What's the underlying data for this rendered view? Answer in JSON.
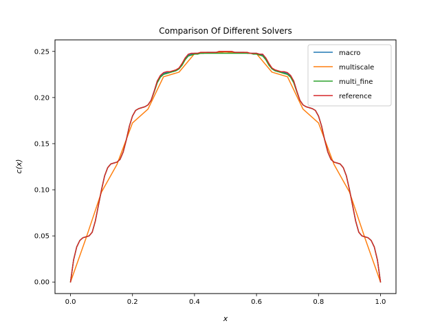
{
  "chart_data": {
    "type": "line",
    "title": "Comparison Of Different Solvers",
    "xlabel": "x",
    "ylabel": "c(x)",
    "xlim": [
      -0.05,
      1.05
    ],
    "ylim": [
      -0.0125,
      0.2625
    ],
    "xticks": [
      0.0,
      0.2,
      0.4,
      0.6,
      0.8,
      1.0
    ],
    "xtick_labels": [
      "0.0",
      "0.2",
      "0.4",
      "0.6",
      "0.8",
      "1.0"
    ],
    "yticks": [
      0.0,
      0.05,
      0.1,
      0.15,
      0.2,
      0.25
    ],
    "ytick_labels": [
      "0.00",
      "0.05",
      "0.10",
      "0.15",
      "0.20",
      "0.25"
    ],
    "grid": false,
    "legend_position": "top-right",
    "series": [
      {
        "name": "macro",
        "color": "#1f77b4",
        "x": [
          0,
          0.01,
          0.02,
          0.03,
          0.04,
          0.05,
          0.06,
          0.07,
          0.08,
          0.09,
          0.1,
          0.11,
          0.12,
          0.13,
          0.14,
          0.15,
          0.16,
          0.17,
          0.18,
          0.19,
          0.2,
          0.21,
          0.22,
          0.23,
          0.24,
          0.25,
          0.26,
          0.27,
          0.28,
          0.29,
          0.3,
          0.31,
          0.32,
          0.33,
          0.34,
          0.35,
          0.36,
          0.37,
          0.38,
          0.39,
          0.4,
          0.41,
          0.42,
          0.43,
          0.44,
          0.45,
          0.46,
          0.47,
          0.48,
          0.49,
          0.5,
          0.51,
          0.52,
          0.53,
          0.54,
          0.55,
          0.56,
          0.57,
          0.58,
          0.59,
          0.6,
          0.61,
          0.62,
          0.63,
          0.64,
          0.65,
          0.66,
          0.67,
          0.68,
          0.69,
          0.7,
          0.71,
          0.72,
          0.73,
          0.74,
          0.75,
          0.76,
          0.77,
          0.78,
          0.79,
          0.8,
          0.81,
          0.82,
          0.83,
          0.84,
          0.85,
          0.86,
          0.87,
          0.88,
          0.89,
          0.9,
          0.91,
          0.92,
          0.93,
          0.94,
          0.95,
          0.96,
          0.97,
          0.98,
          0.99,
          1.0
        ],
        "y": [
          0,
          0.024,
          0.038,
          0.045,
          0.048,
          0.049,
          0.05,
          0.054,
          0.066,
          0.083,
          0.1,
          0.115,
          0.124,
          0.128,
          0.129,
          0.13,
          0.133,
          0.141,
          0.154,
          0.169,
          0.18,
          0.186,
          0.188,
          0.189,
          0.19,
          0.192,
          0.197,
          0.207,
          0.218,
          0.223,
          0.226,
          0.227,
          0.228,
          0.228,
          0.229,
          0.231,
          0.236,
          0.242,
          0.246,
          0.247,
          0.248,
          0.248,
          0.248,
          0.248,
          0.249,
          0.249,
          0.249,
          0.249,
          0.249,
          0.249,
          0.25,
          0.249,
          0.249,
          0.249,
          0.249,
          0.249,
          0.249,
          0.248,
          0.248,
          0.248,
          0.248,
          0.247,
          0.246,
          0.242,
          0.236,
          0.231,
          0.229,
          0.228,
          0.228,
          0.227,
          0.226,
          0.223,
          0.218,
          0.207,
          0.197,
          0.192,
          0.19,
          0.189,
          0.188,
          0.186,
          0.18,
          0.169,
          0.154,
          0.141,
          0.133,
          0.13,
          0.129,
          0.128,
          0.124,
          0.115,
          0.1,
          0.083,
          0.066,
          0.054,
          0.05,
          0.049,
          0.048,
          0.045,
          0.038,
          0.024,
          0
        ]
      },
      {
        "name": "multiscale",
        "color": "#ff7f0e",
        "x": [
          0,
          0.05,
          0.1,
          0.15,
          0.2,
          0.25,
          0.3,
          0.35,
          0.4,
          0.45,
          0.5,
          0.55,
          0.6,
          0.65,
          0.7,
          0.75,
          0.8,
          0.85,
          0.9,
          0.95,
          1.0
        ],
        "y": [
          0,
          0.0475,
          0.0975,
          0.1275,
          0.1725,
          0.1875,
          0.2225,
          0.2275,
          0.2475,
          0.2485,
          0.2495,
          0.2485,
          0.2475,
          0.2275,
          0.2225,
          0.1875,
          0.1725,
          0.1275,
          0.0975,
          0.0475,
          0
        ]
      },
      {
        "name": "multi_fine",
        "color": "#2ca02c",
        "x": [
          0,
          0.01,
          0.02,
          0.03,
          0.04,
          0.05,
          0.06,
          0.07,
          0.08,
          0.09,
          0.1,
          0.11,
          0.12,
          0.13,
          0.14,
          0.15,
          0.16,
          0.17,
          0.18,
          0.19,
          0.2,
          0.21,
          0.22,
          0.23,
          0.24,
          0.25,
          0.26,
          0.27,
          0.28,
          0.29,
          0.3,
          0.31,
          0.32,
          0.33,
          0.34,
          0.35,
          0.36,
          0.37,
          0.38,
          0.39,
          0.4,
          0.41,
          0.42,
          0.43,
          0.44,
          0.45,
          0.46,
          0.47,
          0.48,
          0.49,
          0.5,
          0.51,
          0.52,
          0.53,
          0.54,
          0.55,
          0.56,
          0.57,
          0.58,
          0.59,
          0.6,
          0.61,
          0.62,
          0.63,
          0.64,
          0.65,
          0.66,
          0.67,
          0.68,
          0.69,
          0.7,
          0.71,
          0.72,
          0.73,
          0.74,
          0.75,
          0.76,
          0.77,
          0.78,
          0.79,
          0.8,
          0.81,
          0.82,
          0.83,
          0.84,
          0.85,
          0.86,
          0.87,
          0.88,
          0.89,
          0.9,
          0.91,
          0.92,
          0.93,
          0.94,
          0.95,
          0.96,
          0.97,
          0.98,
          0.99,
          1.0
        ],
        "y": [
          0,
          0.024,
          0.038,
          0.045,
          0.048,
          0.049,
          0.05,
          0.054,
          0.066,
          0.083,
          0.1,
          0.115,
          0.124,
          0.128,
          0.129,
          0.13,
          0.133,
          0.141,
          0.154,
          0.169,
          0.18,
          0.186,
          0.188,
          0.189,
          0.19,
          0.192,
          0.197,
          0.206,
          0.216,
          0.222,
          0.225,
          0.226,
          0.227,
          0.228,
          0.229,
          0.231,
          0.235,
          0.241,
          0.245,
          0.246,
          0.247,
          0.247,
          0.248,
          0.248,
          0.248,
          0.248,
          0.248,
          0.248,
          0.248,
          0.248,
          0.248,
          0.248,
          0.248,
          0.248,
          0.248,
          0.248,
          0.248,
          0.248,
          0.248,
          0.247,
          0.247,
          0.246,
          0.245,
          0.241,
          0.235,
          0.231,
          0.229,
          0.228,
          0.227,
          0.226,
          0.225,
          0.222,
          0.216,
          0.206,
          0.197,
          0.192,
          0.19,
          0.189,
          0.188,
          0.186,
          0.18,
          0.169,
          0.154,
          0.141,
          0.133,
          0.13,
          0.129,
          0.128,
          0.124,
          0.115,
          0.1,
          0.083,
          0.066,
          0.054,
          0.05,
          0.049,
          0.048,
          0.045,
          0.038,
          0.024,
          0
        ]
      },
      {
        "name": "reference",
        "color": "#d62728",
        "x": [
          0,
          0.01,
          0.02,
          0.03,
          0.04,
          0.05,
          0.06,
          0.07,
          0.08,
          0.09,
          0.1,
          0.11,
          0.12,
          0.13,
          0.14,
          0.15,
          0.16,
          0.17,
          0.18,
          0.19,
          0.2,
          0.21,
          0.22,
          0.23,
          0.24,
          0.25,
          0.26,
          0.27,
          0.28,
          0.29,
          0.3,
          0.31,
          0.32,
          0.33,
          0.34,
          0.35,
          0.36,
          0.37,
          0.38,
          0.39,
          0.4,
          0.41,
          0.42,
          0.43,
          0.44,
          0.45,
          0.46,
          0.47,
          0.48,
          0.49,
          0.5,
          0.51,
          0.52,
          0.53,
          0.54,
          0.55,
          0.56,
          0.57,
          0.58,
          0.59,
          0.6,
          0.61,
          0.62,
          0.63,
          0.64,
          0.65,
          0.66,
          0.67,
          0.68,
          0.69,
          0.7,
          0.71,
          0.72,
          0.73,
          0.74,
          0.75,
          0.76,
          0.77,
          0.78,
          0.79,
          0.8,
          0.81,
          0.82,
          0.83,
          0.84,
          0.85,
          0.86,
          0.87,
          0.88,
          0.89,
          0.9,
          0.91,
          0.92,
          0.93,
          0.94,
          0.95,
          0.96,
          0.97,
          0.98,
          0.99,
          1.0
        ],
        "y": [
          0,
          0.024,
          0.038,
          0.045,
          0.048,
          0.049,
          0.05,
          0.054,
          0.066,
          0.083,
          0.1,
          0.115,
          0.124,
          0.128,
          0.129,
          0.13,
          0.133,
          0.141,
          0.154,
          0.169,
          0.18,
          0.186,
          0.188,
          0.189,
          0.19,
          0.192,
          0.197,
          0.207,
          0.218,
          0.224,
          0.227,
          0.228,
          0.228,
          0.229,
          0.23,
          0.232,
          0.237,
          0.243,
          0.247,
          0.248,
          0.248,
          0.248,
          0.249,
          0.249,
          0.249,
          0.249,
          0.249,
          0.249,
          0.25,
          0.25,
          0.25,
          0.25,
          0.25,
          0.249,
          0.249,
          0.249,
          0.249,
          0.249,
          0.248,
          0.248,
          0.248,
          0.247,
          0.247,
          0.243,
          0.237,
          0.232,
          0.23,
          0.229,
          0.228,
          0.228,
          0.227,
          0.224,
          0.218,
          0.207,
          0.197,
          0.192,
          0.19,
          0.189,
          0.188,
          0.186,
          0.18,
          0.169,
          0.154,
          0.141,
          0.133,
          0.13,
          0.129,
          0.128,
          0.124,
          0.115,
          0.1,
          0.083,
          0.066,
          0.054,
          0.05,
          0.049,
          0.048,
          0.045,
          0.038,
          0.024,
          0
        ]
      }
    ]
  }
}
